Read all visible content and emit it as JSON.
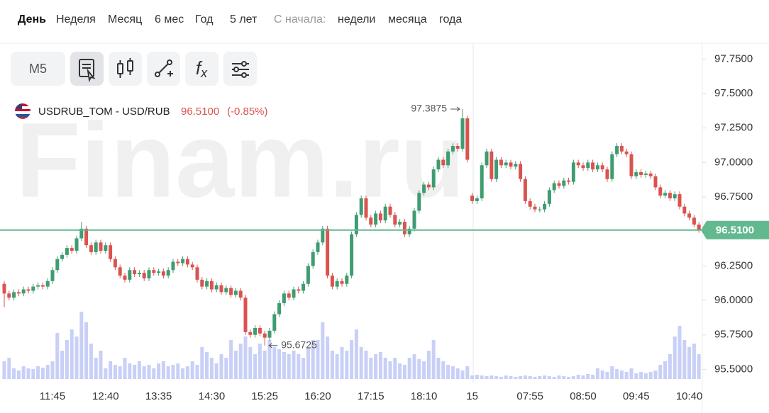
{
  "ui": {
    "periods": [
      "День",
      "Неделя",
      "Месяц",
      "6 мес",
      "Год",
      "5 лет"
    ],
    "since_label": "С начала:",
    "since": [
      "недели",
      "месяца",
      "года"
    ],
    "interval": "M5",
    "watermark": "Finam.ru"
  },
  "chart_data": {
    "type": "candlestick",
    "legend": {
      "symbol": "USDRUB_TOM - USD/RUB",
      "price": {
        "value": 96.51,
        "label": "96.5100"
      },
      "change": {
        "value": -0.85,
        "label": "(-0.85%)"
      }
    },
    "up_color": "#3f9c71",
    "down_color": "#d9534f",
    "volume_color": "#c8d0f7",
    "last_price_color": "#63b98f",
    "categories": [
      null,
      null,
      null,
      null,
      null,
      null,
      null,
      null,
      null,
      null,
      "11:45",
      null,
      null,
      null,
      null,
      null,
      null,
      null,
      null,
      null,
      null,
      "12:40",
      null,
      null,
      null,
      null,
      null,
      null,
      null,
      null,
      null,
      null,
      "13:35",
      null,
      null,
      null,
      null,
      null,
      null,
      null,
      null,
      null,
      null,
      "14:30",
      null,
      null,
      null,
      null,
      null,
      null,
      null,
      null,
      null,
      null,
      "15:25",
      null,
      null,
      null,
      null,
      null,
      null,
      null,
      null,
      null,
      null,
      "16:20",
      null,
      null,
      null,
      null,
      null,
      null,
      null,
      null,
      null,
      null,
      "17:15",
      null,
      null,
      null,
      null,
      null,
      null,
      null,
      null,
      null,
      null,
      "18:10",
      null,
      null,
      null,
      null,
      null,
      null,
      null,
      null,
      null,
      "15",
      null,
      null,
      null,
      null,
      null,
      null,
      null,
      null,
      null,
      null,
      null,
      "07:55",
      null,
      null,
      null,
      null,
      null,
      null,
      null,
      null,
      null,
      null,
      "08:50",
      null,
      null,
      null,
      null,
      null,
      null,
      null,
      null,
      null,
      null,
      "09:45",
      null,
      null,
      null,
      null,
      null,
      null,
      null,
      null,
      null,
      null,
      "10:40",
      null,
      null
    ],
    "open": [
      96.12,
      96.05,
      96.02,
      96.06,
      96.05,
      96.08,
      96.07,
      96.1,
      96.11,
      96.1,
      96.14,
      96.22,
      96.3,
      96.33,
      96.38,
      96.36,
      96.45,
      96.52,
      96.4,
      96.35,
      96.42,
      96.36,
      96.4,
      96.3,
      96.24,
      96.18,
      96.15,
      96.22,
      96.19,
      96.2,
      96.16,
      96.22,
      96.2,
      96.21,
      96.18,
      96.22,
      96.28,
      96.27,
      96.3,
      96.26,
      96.24,
      96.15,
      96.1,
      96.14,
      96.08,
      96.11,
      96.06,
      96.09,
      96.04,
      96.07,
      96.02,
      95.77,
      95.75,
      95.8,
      95.76,
      95.73,
      95.78,
      95.9,
      95.98,
      96.05,
      96.02,
      96.08,
      96.07,
      96.12,
      96.25,
      96.35,
      96.42,
      96.52,
      96.18,
      96.1,
      96.14,
      96.12,
      96.18,
      96.48,
      96.62,
      96.74,
      96.6,
      96.55,
      96.63,
      96.58,
      96.68,
      96.62,
      96.55,
      96.57,
      96.48,
      96.52,
      96.65,
      96.78,
      96.84,
      96.82,
      96.95,
      97.02,
      96.98,
      97.08,
      97.12,
      97.1,
      97.32,
      96.76,
      96.72,
      96.74,
      96.98,
      97.08,
      96.88,
      97.02,
      96.98,
      97.0,
      96.97,
      96.99,
      96.88,
      96.72,
      96.68,
      96.66,
      96.66,
      96.7,
      96.8,
      96.85,
      96.83,
      96.87,
      96.86,
      97.0,
      96.98,
      96.96,
      97.0,
      96.95,
      96.98,
      96.95,
      96.88,
      97.06,
      97.12,
      97.08,
      97.06,
      96.9,
      96.93,
      96.91,
      96.92,
      96.9,
      96.82,
      96.76,
      96.78,
      96.74,
      96.77,
      96.68,
      96.63,
      96.6,
      96.55
    ],
    "high": [
      96.14,
      96.07,
      96.08,
      96.08,
      96.1,
      96.1,
      96.12,
      96.13,
      96.13,
      96.16,
      96.24,
      96.32,
      96.35,
      96.4,
      96.4,
      96.47,
      96.57,
      96.54,
      96.42,
      96.44,
      96.44,
      96.42,
      96.42,
      96.32,
      96.26,
      96.2,
      96.24,
      96.24,
      96.22,
      96.22,
      96.24,
      96.24,
      96.23,
      96.23,
      96.24,
      96.3,
      96.3,
      96.32,
      96.32,
      96.28,
      96.26,
      96.17,
      96.16,
      96.16,
      96.13,
      96.13,
      96.11,
      96.11,
      96.09,
      96.09,
      96.04,
      95.79,
      95.82,
      95.82,
      95.78,
      95.8,
      95.92,
      96.0,
      96.07,
      96.07,
      96.1,
      96.1,
      96.14,
      96.27,
      96.37,
      96.44,
      96.54,
      96.54,
      96.2,
      96.16,
      96.16,
      96.2,
      96.5,
      96.64,
      96.76,
      96.76,
      96.62,
      96.65,
      96.65,
      96.7,
      96.7,
      96.64,
      96.59,
      96.59,
      96.54,
      96.67,
      96.8,
      96.86,
      96.86,
      96.97,
      97.04,
      97.04,
      97.1,
      97.14,
      97.14,
      97.3875,
      97.34,
      96.78,
      96.76,
      97.0,
      97.1,
      97.1,
      97.04,
      97.04,
      97.02,
      97.02,
      97.01,
      97.01,
      96.9,
      96.74,
      96.7,
      96.68,
      96.72,
      96.82,
      96.87,
      96.87,
      96.89,
      96.89,
      97.02,
      97.02,
      97.0,
      97.02,
      97.02,
      97.0,
      97.0,
      96.97,
      97.08,
      97.14,
      97.14,
      97.1,
      97.08,
      96.95,
      96.95,
      96.94,
      96.94,
      96.92,
      96.84,
      96.8,
      96.8,
      96.79,
      96.79,
      96.7,
      96.65,
      96.62,
      96.57
    ],
    "low": [
      95.95,
      96.0,
      96.0,
      96.03,
      96.03,
      96.05,
      96.05,
      96.08,
      96.08,
      96.08,
      96.12,
      96.2,
      96.28,
      96.31,
      96.34,
      96.34,
      96.43,
      96.38,
      96.33,
      96.33,
      96.34,
      96.34,
      96.28,
      96.22,
      96.16,
      96.13,
      96.13,
      96.17,
      96.17,
      96.14,
      96.14,
      96.18,
      96.18,
      96.16,
      96.16,
      96.2,
      96.25,
      96.25,
      96.24,
      96.22,
      96.13,
      96.08,
      96.08,
      96.06,
      96.06,
      96.04,
      96.04,
      96.02,
      96.02,
      96.0,
      95.75,
      95.73,
      95.73,
      95.74,
      95.6725,
      95.71,
      95.76,
      95.88,
      95.96,
      96.0,
      96.0,
      96.05,
      96.05,
      96.1,
      96.23,
      96.33,
      96.4,
      96.16,
      96.08,
      96.08,
      96.1,
      96.1,
      96.16,
      96.46,
      96.6,
      96.58,
      96.53,
      96.53,
      96.56,
      96.56,
      96.6,
      96.53,
      96.53,
      96.46,
      96.46,
      96.5,
      96.63,
      96.76,
      96.8,
      96.8,
      96.93,
      96.96,
      96.96,
      97.06,
      97.08,
      97.08,
      97.0,
      96.7,
      96.7,
      96.72,
      96.96,
      96.86,
      96.86,
      96.96,
      96.96,
      96.95,
      96.95,
      96.86,
      96.7,
      96.66,
      96.64,
      96.64,
      96.64,
      96.68,
      96.78,
      96.81,
      96.81,
      96.84,
      96.84,
      96.96,
      96.94,
      96.94,
      96.93,
      96.93,
      96.93,
      96.86,
      96.86,
      97.04,
      97.06,
      97.04,
      96.88,
      96.88,
      96.89,
      96.89,
      96.88,
      96.8,
      96.74,
      96.74,
      96.72,
      96.72,
      96.66,
      96.61,
      96.58,
      96.53,
      96.49
    ],
    "close": [
      96.05,
      96.02,
      96.06,
      96.05,
      96.08,
      96.07,
      96.1,
      96.11,
      96.1,
      96.14,
      96.22,
      96.3,
      96.33,
      96.38,
      96.36,
      96.45,
      96.52,
      96.4,
      96.35,
      96.42,
      96.36,
      96.4,
      96.3,
      96.24,
      96.18,
      96.15,
      96.22,
      96.19,
      96.2,
      96.16,
      96.22,
      96.2,
      96.21,
      96.18,
      96.22,
      96.28,
      96.27,
      96.3,
      96.26,
      96.24,
      96.15,
      96.1,
      96.14,
      96.08,
      96.11,
      96.06,
      96.09,
      96.04,
      96.07,
      96.02,
      95.77,
      95.75,
      95.8,
      95.76,
      95.73,
      95.78,
      95.9,
      95.98,
      96.05,
      96.02,
      96.08,
      96.07,
      96.12,
      96.25,
      96.35,
      96.42,
      96.52,
      96.18,
      96.1,
      96.14,
      96.12,
      96.18,
      96.48,
      96.62,
      96.74,
      96.6,
      96.55,
      96.63,
      96.58,
      96.68,
      96.62,
      96.55,
      96.57,
      96.48,
      96.52,
      96.65,
      96.78,
      96.84,
      96.82,
      96.95,
      97.02,
      96.98,
      97.08,
      97.12,
      97.1,
      97.32,
      97.02,
      96.72,
      96.74,
      96.98,
      97.08,
      96.88,
      97.02,
      96.98,
      97.0,
      96.97,
      96.99,
      96.88,
      96.72,
      96.68,
      96.66,
      96.66,
      96.7,
      96.8,
      96.85,
      96.83,
      96.87,
      96.86,
      97.0,
      96.98,
      96.96,
      97.0,
      96.95,
      96.98,
      96.95,
      96.88,
      97.06,
      97.12,
      97.08,
      97.06,
      96.9,
      96.93,
      96.91,
      96.92,
      96.9,
      96.82,
      96.76,
      96.78,
      96.74,
      96.77,
      96.68,
      96.63,
      96.6,
      96.55,
      96.51
    ],
    "volume": [
      25,
      30,
      15,
      12,
      18,
      15,
      14,
      18,
      16,
      20,
      25,
      65,
      40,
      55,
      70,
      60,
      95,
      80,
      50,
      30,
      40,
      15,
      25,
      20,
      18,
      30,
      22,
      20,
      25,
      18,
      20,
      15,
      22,
      25,
      18,
      20,
      22,
      15,
      18,
      25,
      20,
      45,
      38,
      30,
      22,
      35,
      30,
      55,
      40,
      50,
      60,
      45,
      35,
      50,
      40,
      55,
      45,
      42,
      38,
      35,
      40,
      35,
      30,
      45,
      55,
      55,
      80,
      60,
      40,
      35,
      45,
      40,
      55,
      70,
      45,
      40,
      30,
      35,
      38,
      30,
      25,
      30,
      22,
      20,
      30,
      35,
      28,
      25,
      40,
      55,
      30,
      25,
      20,
      18,
      15,
      12,
      18,
      5,
      6,
      5,
      4,
      5,
      4,
      3,
      5,
      4,
      3,
      4,
      5,
      4,
      3,
      4,
      5,
      4,
      3,
      5,
      4,
      3,
      4,
      6,
      5,
      7,
      6,
      15,
      12,
      10,
      18,
      14,
      12,
      10,
      15,
      8,
      10,
      8,
      10,
      12,
      20,
      25,
      35,
      60,
      75,
      55,
      45,
      50,
      35
    ],
    "ylim": [
      95.43,
      97.86
    ],
    "yticks": [
      {
        "value": 95.5,
        "label": "95.5000"
      },
      {
        "value": 95.75,
        "label": "95.7500"
      },
      {
        "value": 96.0,
        "label": "96.0000"
      },
      {
        "value": 96.25,
        "label": "96.2500"
      },
      {
        "value": 96.5,
        "label": "96.5000"
      },
      {
        "value": 96.75,
        "label": "96.7500"
      },
      {
        "value": 97.0,
        "label": "97.0000"
      },
      {
        "value": 97.25,
        "label": "97.2500"
      },
      {
        "value": 97.5,
        "label": "97.5000"
      },
      {
        "value": 97.75,
        "label": "97.7500"
      }
    ],
    "last_price": {
      "value": 96.51,
      "label": "96.5100"
    },
    "high_marker": 97.3875,
    "low_marker": 95.6725
  }
}
